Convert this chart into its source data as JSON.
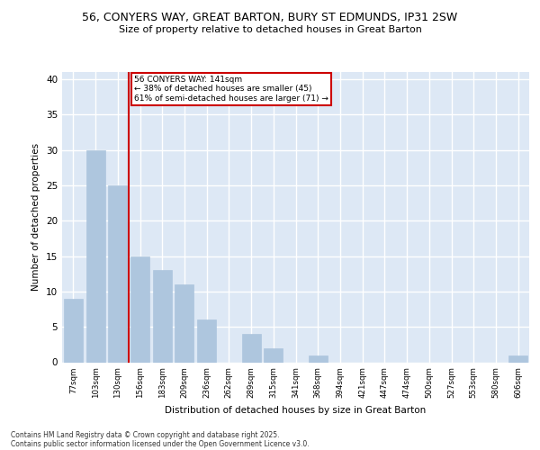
{
  "title_line1": "56, CONYERS WAY, GREAT BARTON, BURY ST EDMUNDS, IP31 2SW",
  "title_line2": "Size of property relative to detached houses in Great Barton",
  "xlabel": "Distribution of detached houses by size in Great Barton",
  "ylabel": "Number of detached properties",
  "categories": [
    "77sqm",
    "103sqm",
    "130sqm",
    "156sqm",
    "183sqm",
    "209sqm",
    "236sqm",
    "262sqm",
    "289sqm",
    "315sqm",
    "341sqm",
    "368sqm",
    "394sqm",
    "421sqm",
    "447sqm",
    "474sqm",
    "500sqm",
    "527sqm",
    "553sqm",
    "580sqm",
    "606sqm"
  ],
  "values": [
    9,
    30,
    25,
    15,
    13,
    11,
    6,
    0,
    4,
    2,
    0,
    1,
    0,
    0,
    0,
    0,
    0,
    0,
    0,
    0,
    1
  ],
  "bar_color": "#aec6de",
  "bar_edgecolor": "#aec6de",
  "vline_x": 2.5,
  "vline_color": "#cc0000",
  "ylim": [
    0,
    41
  ],
  "yticks": [
    0,
    5,
    10,
    15,
    20,
    25,
    30,
    35,
    40
  ],
  "annotation_text": "56 CONYERS WAY: 141sqm\n← 38% of detached houses are smaller (45)\n61% of semi-detached houses are larger (71) →",
  "annotation_box_color": "#ffffff",
  "annotation_box_edgecolor": "#cc0000",
  "footer_line1": "Contains HM Land Registry data © Crown copyright and database right 2025.",
  "footer_line2": "Contains public sector information licensed under the Open Government Licence v3.0.",
  "background_color": "#dde8f5",
  "grid_color": "#ffffff",
  "fig_bg_color": "#ffffff"
}
